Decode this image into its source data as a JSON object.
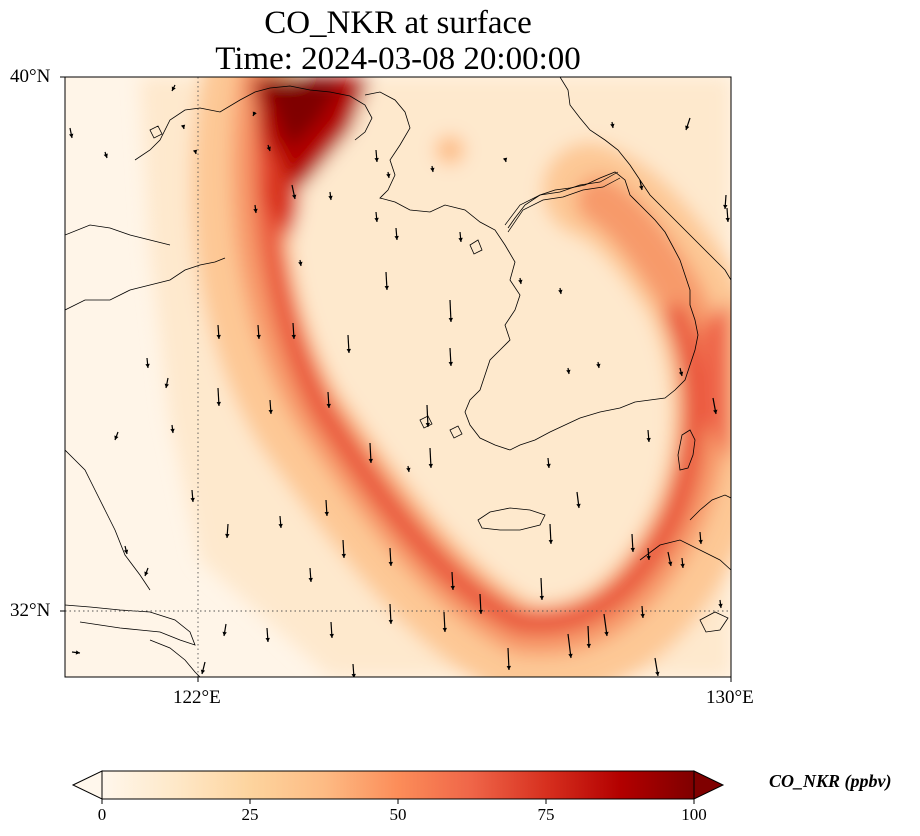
{
  "title": {
    "line1": "CO_NKR at surface",
    "line2": "Time: 2024-03-08 20:00:00"
  },
  "axes": {
    "lat_labels": [
      "40°N",
      "32°N"
    ],
    "lon_labels": [
      "122°E",
      "130°E"
    ],
    "lat_range": [
      31,
      40
    ],
    "lon_range": [
      120,
      130
    ],
    "gridlines": {
      "lat": [
        32
      ],
      "lon": [
        122
      ],
      "style": "dotted"
    }
  },
  "colorbar": {
    "label": "CO_NKR (ppbv)",
    "ticks": [
      "0",
      "25",
      "50",
      "75",
      "100"
    ],
    "range": [
      0,
      100
    ],
    "colormap": "OrRd",
    "extend": "both",
    "colors": [
      "#fff7ec",
      "#fee8c8",
      "#fdd49e",
      "#fdbb84",
      "#fc8d59",
      "#ef6548",
      "#d7301f",
      "#b30000",
      "#7f0000"
    ]
  },
  "map": {
    "field": "CO_NKR",
    "level": "surface",
    "units": "ppbv",
    "features": [
      "coastlines",
      "wind vectors"
    ]
  }
}
